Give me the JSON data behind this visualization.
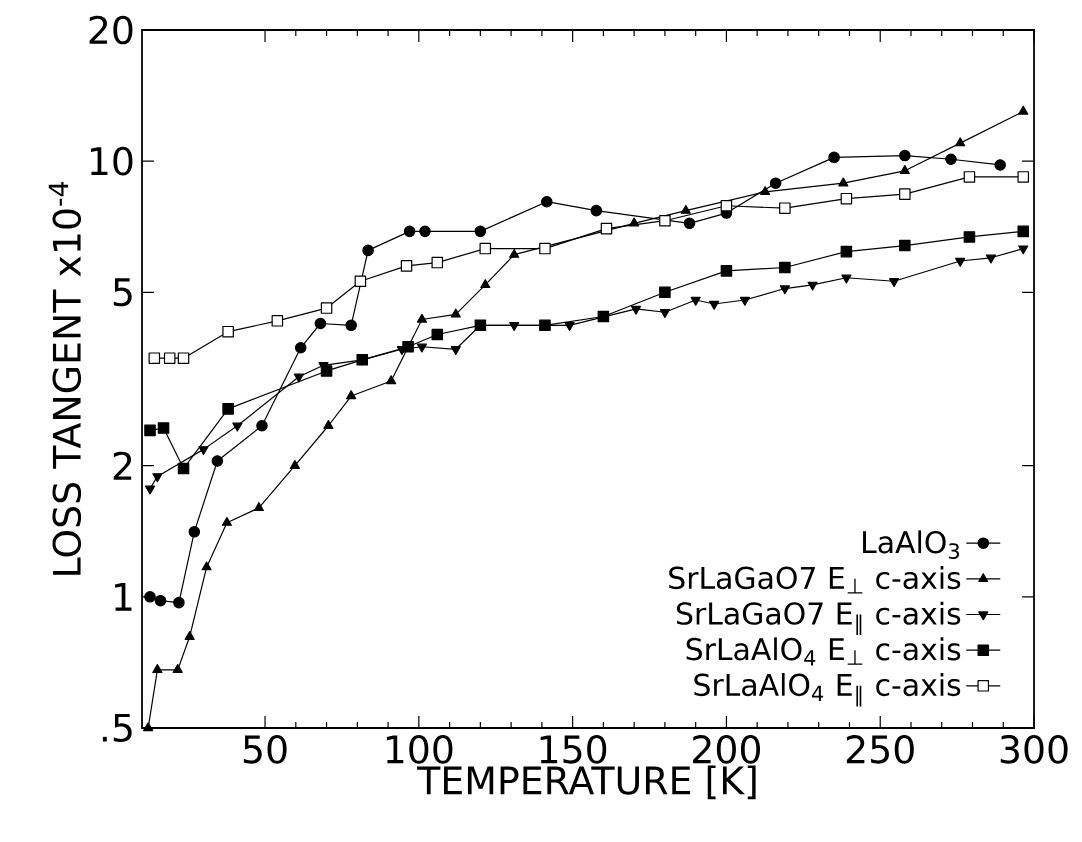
{
  "chart_data": {
    "type": "line",
    "xlabel": "TEMPERATURE  [K]",
    "ylabel": "LOSS  TANGENT  x10$^{-4}$",
    "xlim": [
      10,
      300
    ],
    "ylim": [
      0.5,
      20
    ],
    "log": "y",
    "xticks": [
      50,
      100,
      150,
      200,
      250,
      300
    ],
    "yticks": [
      {
        "value": 0.5,
        "label": ".5"
      },
      1,
      2,
      5,
      10,
      20
    ],
    "grid": false,
    "legend": "bottom right",
    "series": [
      {
        "name": "LaAlO$_{3}$",
        "color": "#000000",
        "marker": "circle",
        "x": [
          12.6,
          16,
          22,
          27,
          34.5,
          49,
          61.6,
          68,
          78,
          83.5,
          97,
          102,
          120,
          141.6,
          157.7,
          188,
          200,
          216,
          235,
          258,
          273,
          289
        ],
        "values": [
          1.0,
          0.98,
          0.97,
          1.41,
          2.05,
          2.47,
          3.73,
          4.24,
          4.2,
          6.24,
          6.9,
          6.9,
          6.9,
          8.07,
          7.7,
          7.2,
          7.6,
          8.9,
          10.2,
          10.3,
          10.1,
          9.8
        ]
      },
      {
        "name": "SrLaGaO7  E$_{⊥}$ c-axis",
        "color": "#000000",
        "marker": "triangle",
        "x": [
          12,
          15,
          21.6,
          25.5,
          31,
          37.6,
          48,
          59.7,
          70.6,
          78,
          91,
          101,
          112,
          121.6,
          131,
          170,
          186.8,
          212.6,
          238,
          258,
          276,
          296.5
        ],
        "values": [
          0.5,
          0.68,
          0.68,
          0.81,
          1.17,
          1.48,
          1.6,
          2.0,
          2.47,
          2.89,
          3.13,
          4.33,
          4.45,
          5.2,
          6.1,
          7.2,
          7.7,
          8.5,
          8.9,
          9.5,
          11,
          13
        ]
      },
      {
        "name": "SrLaGaO7  E$_{∥}$ c-axis",
        "color": "#000000",
        "marker": "triangle-down",
        "x": [
          12.6,
          15,
          23,
          30,
          41,
          61,
          69,
          81.6,
          94.5,
          101,
          112,
          120,
          131,
          149,
          170.6,
          180,
          190,
          196,
          206,
          219,
          228,
          239,
          254.5,
          276,
          286,
          296.5
        ],
        "values": [
          1.77,
          1.89,
          null,
          2.18,
          2.47,
          3.2,
          3.4,
          3.5,
          3.7,
          3.75,
          3.7,
          4.2,
          4.2,
          4.2,
          4.58,
          4.5,
          4.8,
          4.7,
          4.8,
          5.1,
          5.2,
          5.4,
          5.3,
          5.9,
          6.0,
          6.3
        ]
      },
      {
        "name": "SrLaAlO$_{4}$  E$_{⊥}$ c-axis",
        "color": "#000000",
        "marker": "square",
        "x": [
          12.6,
          17,
          23.5,
          38,
          70,
          81.6,
          96.5,
          106,
          120,
          141,
          160,
          180,
          200,
          219,
          239,
          258,
          279,
          296.5
        ],
        "values": [
          2.41,
          2.44,
          1.97,
          2.7,
          3.3,
          3.5,
          3.75,
          4.0,
          4.2,
          4.2,
          4.4,
          5.0,
          5.6,
          5.7,
          6.2,
          6.4,
          6.7,
          6.9
        ]
      },
      {
        "name": "SrLaAlO$_{4}$  E$_{∥}$ c-axis",
        "color": "#000000",
        "marker": "square-open",
        "x": [
          14,
          19,
          23.5,
          38,
          54,
          70,
          81,
          96,
          106,
          121.6,
          141,
          161,
          180,
          200,
          219,
          239,
          258,
          279,
          296.5
        ],
        "values": [
          3.53,
          3.53,
          3.53,
          4.06,
          4.3,
          4.6,
          5.3,
          5.75,
          5.85,
          6.3,
          6.3,
          7.0,
          7.3,
          7.9,
          7.8,
          8.2,
          8.4,
          9.2,
          9.2
        ]
      }
    ]
  }
}
